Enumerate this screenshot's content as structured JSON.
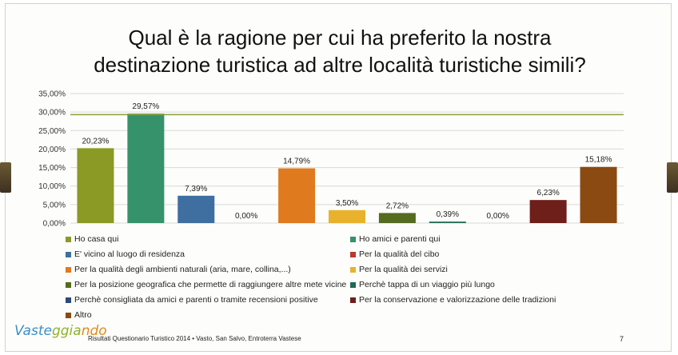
{
  "title_line1": "Qual è la ragione per cui ha preferito la nostra",
  "title_line2": "destinazione turistica ad altre località turistiche simili?",
  "chart_data": {
    "type": "bar",
    "title": "Qual è la ragione per cui ha preferito la nostra destinazione turistica ad altre località turistiche simili?",
    "categories": [
      "Ho casa qui",
      "Ho amici e parenti qui",
      "E' vicino al luogo di residenza",
      "Per la qualità del cibo",
      "Per la qualità degli ambienti naturali (aria, mare, collina,...)",
      "Per la qualità dei servizi",
      "Per la posizione geografica che permette di raggiungere altre mete vicine",
      "Perchè tappa di un viaggio più lungo",
      "Perchè consigliata da amici e parenti o tramite recensioni positive",
      "Per la conservazione e valorizzazione delle tradizioni",
      "Altro"
    ],
    "values": [
      20.23,
      29.57,
      7.39,
      0.0,
      14.79,
      3.5,
      2.72,
      0.39,
      0.0,
      6.23,
      15.18
    ],
    "data_labels": [
      "20,23%",
      "29,57%",
      "7,39%",
      "0,00%",
      "14,79%",
      "3,50%",
      "2,72%",
      "0,39%",
      "0,00%",
      "6,23%",
      "15,18%"
    ],
    "colors": [
      "#8a9a24",
      "#36926a",
      "#3f6ea0",
      "#b83a30",
      "#e07a1f",
      "#e8b22c",
      "#556b1e",
      "#1e6a52",
      "#2b4a7a",
      "#6e1f1a",
      "#8a4a12"
    ],
    "ylim": [
      0,
      35
    ],
    "yticks": [
      "0,00%",
      "5,00%",
      "10,00%",
      "15,00%",
      "20,00%",
      "25,00%",
      "30,00%",
      "35,00%"
    ],
    "ytick_values": [
      0,
      5,
      10,
      15,
      20,
      25,
      30,
      35
    ],
    "reference_line": 29.3,
    "reference_color": "#8aa038",
    "xlabel": "",
    "ylabel": "",
    "grid": true,
    "legend": "bottom"
  },
  "logo": {
    "part1": "Vaste",
    "part2": "ggia",
    "part3": "ndo"
  },
  "footer": "Risultati Questionario Turistico 2014 • Vasto, San Salvo, Entroterra Vastese",
  "page_number": "7"
}
